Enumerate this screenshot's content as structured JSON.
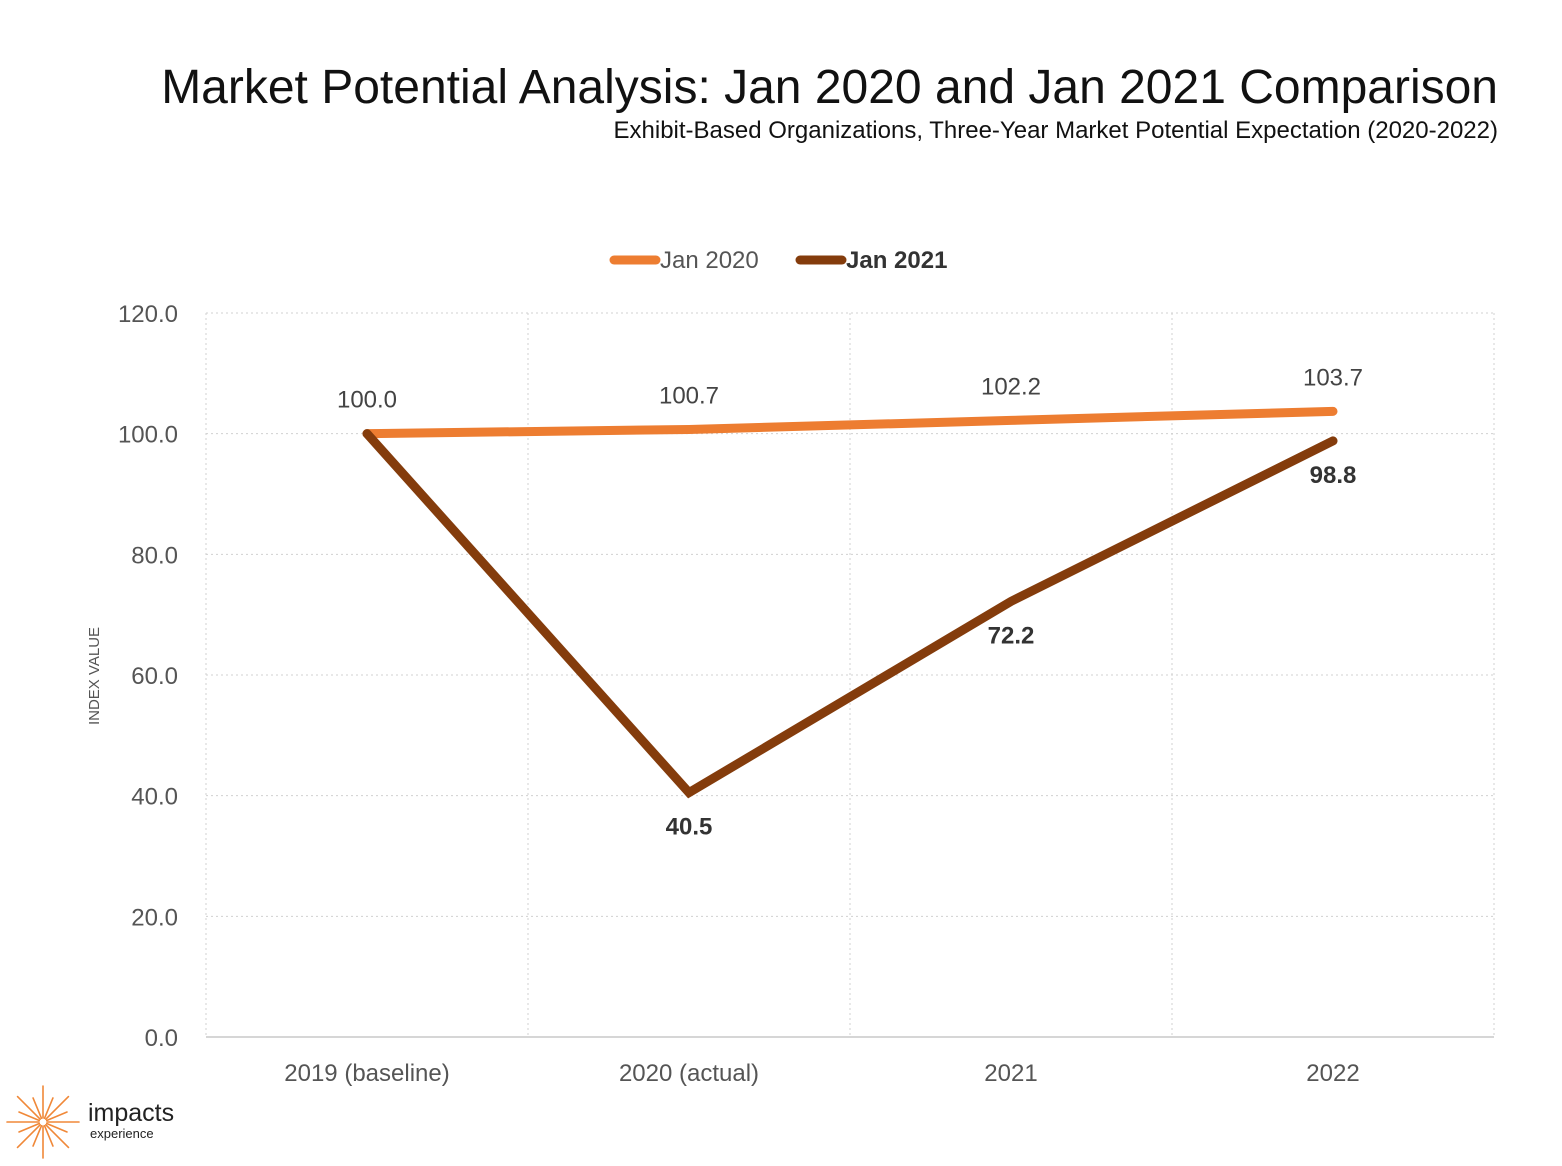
{
  "title": "Market Potential Analysis: Jan 2020 and Jan 2021 Comparison",
  "subtitle": "Exhibit-Based Organizations, Three-Year Market Potential Expectation (2020-2022)",
  "logo": {
    "word": "impacts",
    "sub": "experience",
    "color": "#F08838"
  },
  "chart_data": {
    "type": "line",
    "categories": [
      "2019 (baseline)",
      "2020 (actual)",
      "2021",
      "2022"
    ],
    "series": [
      {
        "name": "Jan 2020",
        "values": [
          100.0,
          100.7,
          102.2,
          103.7
        ],
        "labels": [
          "100.0",
          "100.7",
          "102.2",
          "103.7"
        ],
        "color": "#ED7D31"
      },
      {
        "name": "Jan 2021",
        "values": [
          100.0,
          40.5,
          72.2,
          98.8
        ],
        "labels": [
          "",
          "40.5",
          "72.2",
          "98.8"
        ],
        "color": "#843C0C"
      }
    ],
    "xlabel": "",
    "ylabel": "INDEX VALUE",
    "ylim": [
      0,
      120
    ],
    "yticks": [
      "0.0",
      "20.0",
      "40.0",
      "60.0",
      "80.0",
      "100.0",
      "120.0"
    ],
    "grid": true,
    "legend": "top-center"
  }
}
